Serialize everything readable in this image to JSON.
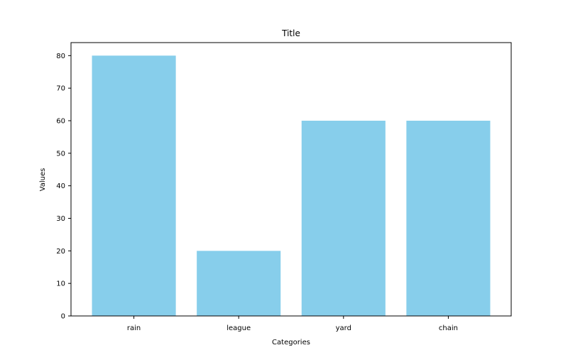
{
  "chart_data": {
    "type": "bar",
    "title": "Title",
    "xlabel": "Categories",
    "ylabel": "Values",
    "categories": [
      "rain",
      "league",
      "yard",
      "chain"
    ],
    "values": [
      80,
      20,
      60,
      60
    ],
    "ylim": [
      0,
      84
    ],
    "yticks": [
      0,
      10,
      20,
      30,
      40,
      50,
      60,
      70,
      80
    ],
    "grid": false,
    "bar_color": "#87CEEB",
    "axis_color": "#000000"
  }
}
